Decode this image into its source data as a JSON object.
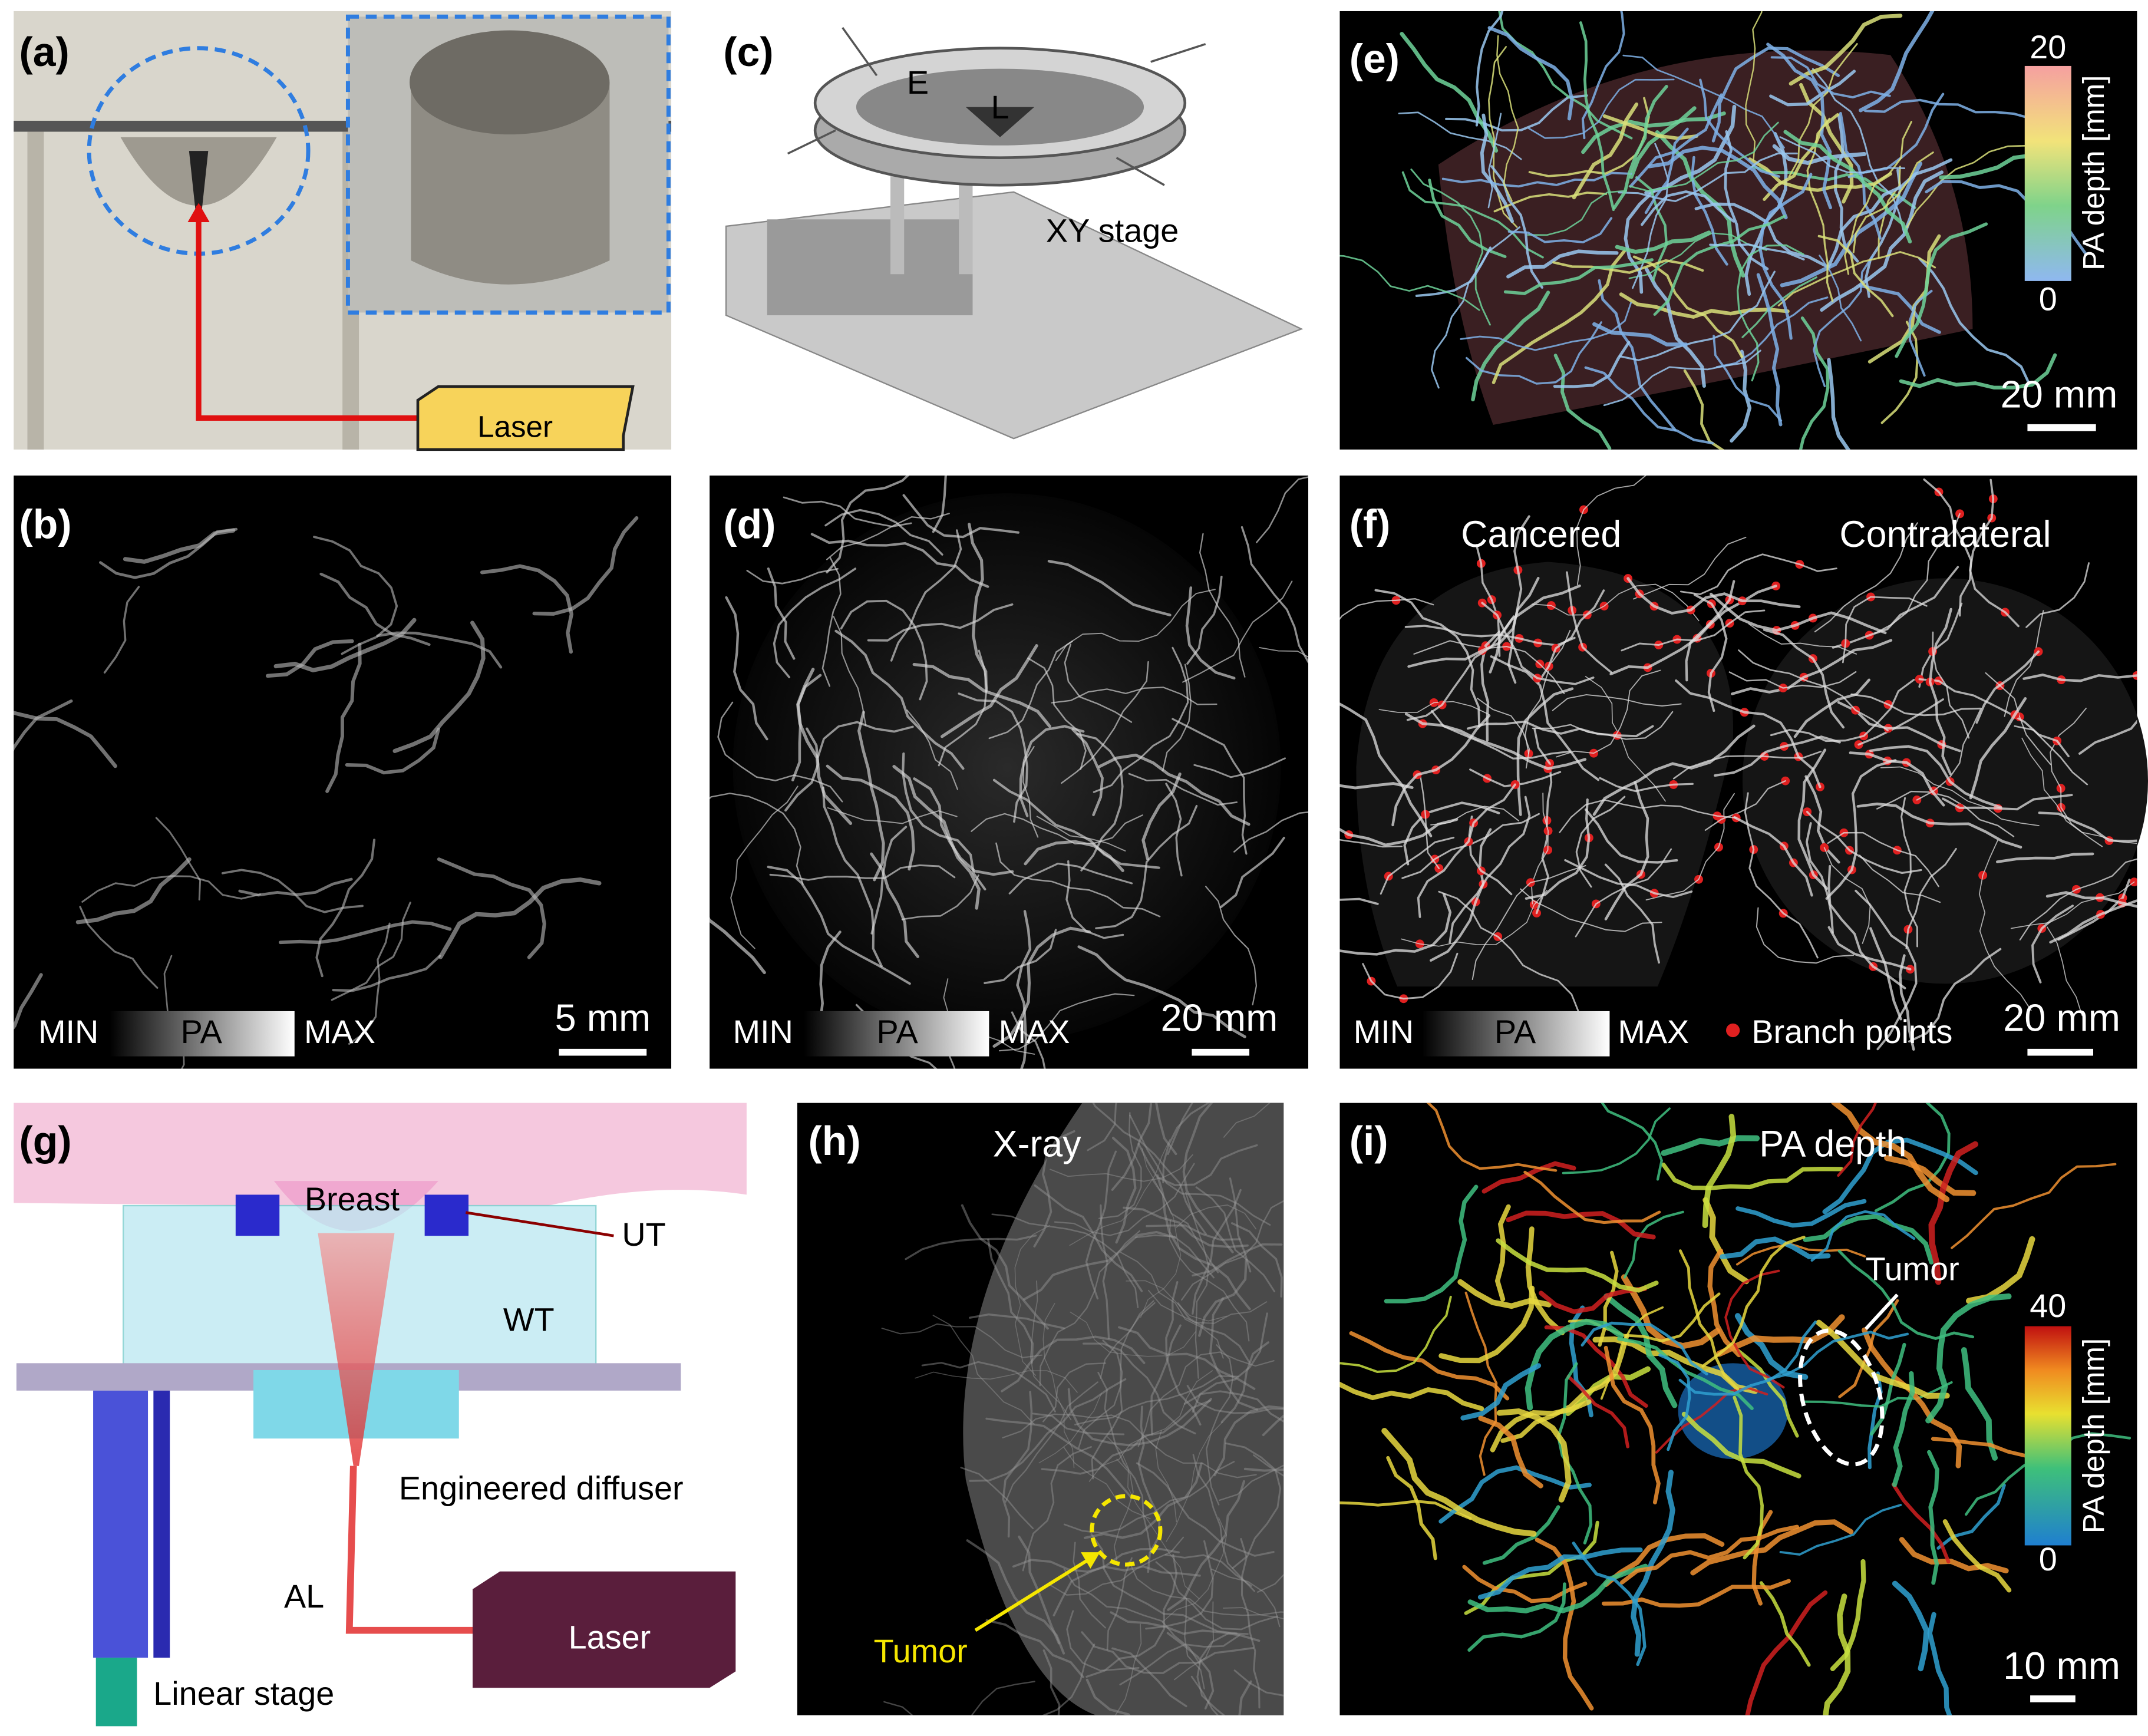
{
  "panels": [
    {
      "label": "(a)",
      "texts": [
        "Laser"
      ]
    },
    {
      "label": "(b)",
      "colorbar": {
        "min": "MIN",
        "label": "PA",
        "max": "MAX"
      },
      "scale_bar": "5 mm"
    },
    {
      "label": "(c)",
      "texts": [
        "E",
        "L",
        "XY stage"
      ]
    },
    {
      "label": "(d)",
      "colorbar": {
        "min": "MIN",
        "label": "PA",
        "max": "MAX"
      },
      "scale_bar": "20 mm"
    },
    {
      "label": "(e)",
      "colorbar": {
        "max": "20",
        "label": "PA depth [mm]",
        "min": "0"
      },
      "scale_bar": "20 mm"
    },
    {
      "label": "(f)",
      "titles": [
        "Cancered",
        "Contralateral"
      ],
      "colorbar": {
        "min": "MIN",
        "label": "PA",
        "max": "MAX"
      },
      "legend": "Branch points",
      "scale_bar": "20 mm"
    },
    {
      "label": "(g)",
      "texts": [
        "Breast",
        "UT",
        "WT",
        "Engineered diffuser",
        "AL",
        "Laser",
        "Linear stage"
      ]
    },
    {
      "label": "(h)",
      "title": "X-ray",
      "texts": [
        "Tumor"
      ]
    },
    {
      "label": "(i)",
      "title": "PA depth",
      "texts": [
        "Tumor"
      ],
      "colorbar": {
        "max": "40",
        "label": "PA depth [mm]",
        "min": "0"
      },
      "scale_bar": "10 mm"
    }
  ]
}
